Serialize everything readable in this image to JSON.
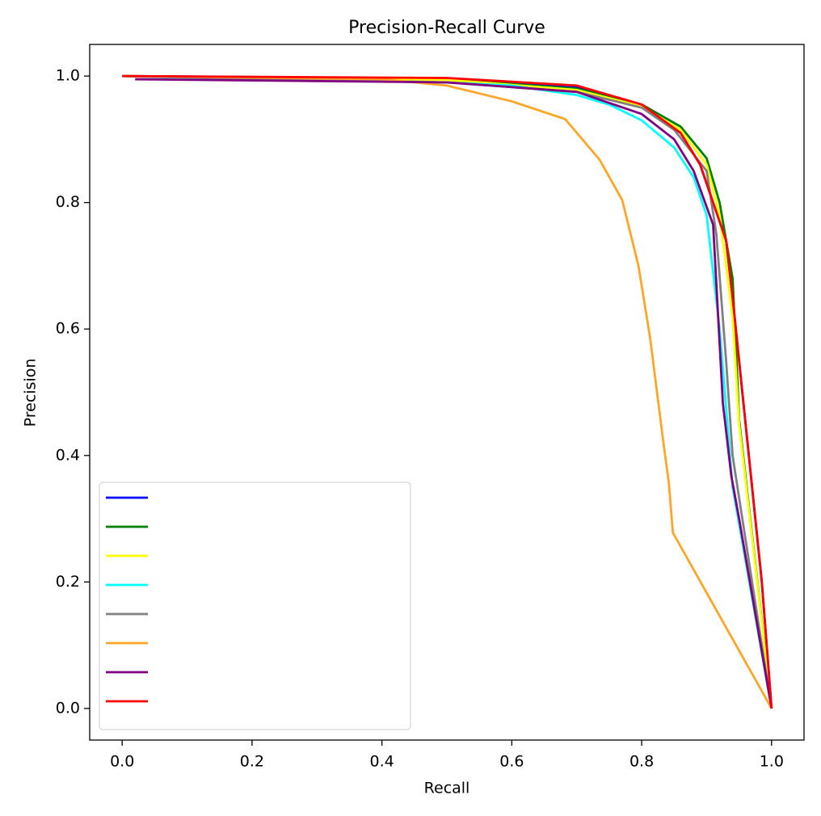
{
  "chart_data": {
    "type": "line",
    "title": "Precision-Recall Curve",
    "x_label": "Recall",
    "y_label": "Precision",
    "xlim": [
      -0.05,
      1.05
    ],
    "ylim": [
      -0.05,
      1.05
    ],
    "xticks": [
      {
        "value": 0,
        "label": "0.0"
      },
      0.2,
      0.4,
      0.6,
      0.8,
      {
        "value": 1,
        "label": "1.0"
      }
    ],
    "yticks": [
      {
        "value": 0,
        "label": "0.0"
      },
      0.2,
      0.4,
      0.6,
      0.8,
      {
        "value": 1,
        "label": "1.0"
      }
    ],
    "legend": "lower left",
    "series": [
      {
        "color": "#0000ff",
        "x": [
          0,
          0.5,
          0.7,
          0.8,
          0.86,
          0.89,
          0.91,
          0.93,
          0.94,
          0.955,
          0.97,
          0.985,
          1
        ],
        "values": [
          1,
          0.996,
          0.983,
          0.953,
          0.91,
          0.86,
          0.8,
          0.74,
          0.65,
          0.5,
          0.35,
          0.2,
          0
        ]
      },
      {
        "color": "#008000",
        "x": [
          0,
          0.5,
          0.7,
          0.8,
          0.86,
          0.9,
          0.92,
          0.94,
          0.946,
          0.95,
          1
        ],
        "values": [
          1,
          0.995,
          0.98,
          0.955,
          0.92,
          0.87,
          0.8,
          0.68,
          0.55,
          0.457,
          0
        ]
      },
      {
        "color": "#ffff00",
        "x": [
          0,
          0.5,
          0.7,
          0.8,
          0.86,
          0.9,
          0.92,
          0.94,
          0.95,
          1
        ],
        "values": [
          1,
          0.994,
          0.978,
          0.952,
          0.915,
          0.86,
          0.78,
          0.62,
          0.45,
          0
        ]
      },
      {
        "color": "#00ffff",
        "x": [
          0,
          0.2,
          0.5,
          0.6,
          0.7,
          0.75,
          0.8,
          0.85,
          0.88,
          0.9,
          0.92,
          0.94,
          1
        ],
        "values": [
          1,
          0.995,
          0.99,
          0.985,
          0.97,
          0.955,
          0.93,
          0.887,
          0.84,
          0.78,
          0.6,
          0.35,
          0
        ]
      },
      {
        "color": "#808080",
        "x": [
          0,
          0.5,
          0.7,
          0.8,
          0.85,
          0.9,
          0.915,
          0.93,
          0.94,
          1
        ],
        "values": [
          1,
          0.99,
          0.975,
          0.95,
          0.915,
          0.85,
          0.75,
          0.55,
          0.4,
          0
        ]
      },
      {
        "color": "#ffa629",
        "x": [
          0,
          0.4,
          0.5,
          0.6,
          0.682,
          0.735,
          0.77,
          0.795,
          0.813,
          0.832,
          0.842,
          0.848,
          1
        ],
        "values": [
          1,
          0.995,
          0.985,
          0.96,
          0.932,
          0.868,
          0.804,
          0.7,
          0.586,
          0.432,
          0.355,
          0.278,
          0
        ]
      },
      {
        "color": "#800080",
        "x": [
          0.02,
          0.5,
          0.7,
          0.8,
          0.85,
          0.88,
          0.91,
          0.925,
          0.938,
          0.95,
          1
        ],
        "values": [
          0.995,
          0.99,
          0.975,
          0.94,
          0.9,
          0.85,
          0.765,
          0.483,
          0.368,
          0.3,
          0
        ]
      },
      {
        "color": "#ff0000",
        "x": [
          0,
          0.5,
          0.7,
          0.8,
          0.86,
          0.89,
          0.91,
          0.93,
          0.94,
          0.955,
          0.97,
          0.985,
          1
        ],
        "values": [
          1,
          0.997,
          0.985,
          0.955,
          0.91,
          0.86,
          0.8,
          0.74,
          0.65,
          0.5,
          0.35,
          0.2,
          0
        ]
      }
    ]
  }
}
